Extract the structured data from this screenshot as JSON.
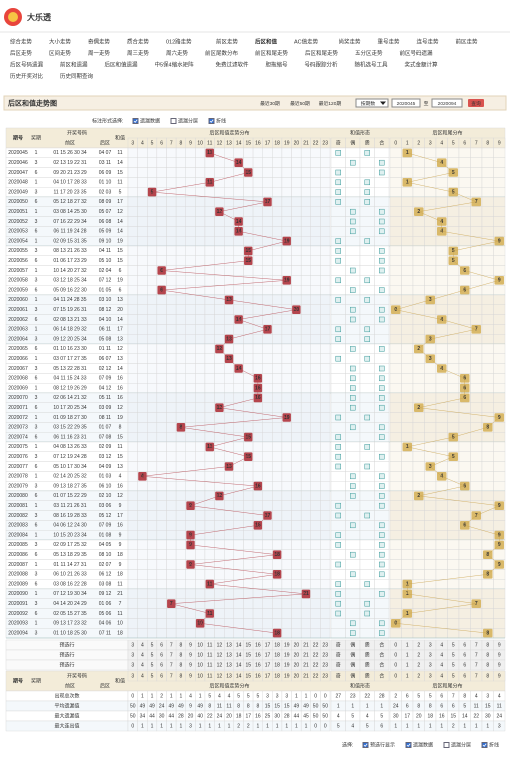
{
  "header": {
    "logo_text": "大乐透"
  },
  "nav": {
    "rows": [
      [
        "综合走势",
        "大小走势",
        "奇偶走势",
        "质合走势",
        "012路走势",
        "前区走势",
        "后区和值",
        "AC值走势",
        "尚奖走势",
        "重号走势",
        "连号走势",
        "前区走势"
      ],
      [
        "后区走势",
        "区间走势",
        "周一走势",
        "周三走势",
        "周六走势",
        "前区尾数分布",
        "前区和尾走势",
        "后区和尾走势",
        "五分区走势",
        "前区号码遗漏"
      ],
      [
        "后区号码遗漏",
        "前区和遗漏",
        "后区和值遗漏",
        "中5保4缩水矩阵",
        "免费过滤软件",
        "胆拖缩号",
        "号码跟踪分析",
        "随机选号工具",
        "奖式金额计算"
      ],
      [
        "历史开奖对比",
        "历史同期查询"
      ]
    ],
    "active": [
      0,
      6
    ]
  },
  "toolbar": {
    "title": "后区和值走势图",
    "range_links": [
      "最近30期",
      "最近50期",
      "最近120期"
    ],
    "select": "按期数",
    "from": "2020045",
    "to_label": "至",
    "to": "2020094",
    "query": "查询"
  },
  "options": {
    "label": "标注形式选择:",
    "items": [
      {
        "label": "遗漏数据",
        "checked": true
      },
      {
        "label": "遗漏分层",
        "checked": false
      },
      {
        "label": "折线",
        "checked": true
      }
    ]
  },
  "table": {
    "headers": {
      "period": "期号",
      "day": "奖期",
      "draw": "开奖号码",
      "front": "前区",
      "back": "后区",
      "sum": "和值",
      "dist": "后区和值走势分布",
      "form": "和值形态",
      "tail": "后区和尾分布"
    },
    "dist_cols": [
      3,
      4,
      5,
      6,
      7,
      8,
      9,
      10,
      11,
      12,
      13,
      14,
      15,
      16,
      17,
      18,
      19,
      20,
      21,
      22,
      23
    ],
    "form_cols": [
      "奇",
      "偶",
      "质",
      "合"
    ],
    "tail_cols": [
      0,
      1,
      2,
      3,
      4,
      5,
      6,
      7,
      8,
      9
    ],
    "rows": [
      [
        "2020045",
        "1",
        "01 15 26 30 34",
        "04 07",
        11,
        1
      ],
      [
        "2020046",
        "3",
        "02 13 19 22 31",
        "03 11",
        14,
        4
      ],
      [
        "2020047",
        "6",
        "09 20 21 23 29",
        "06 09",
        15,
        5
      ],
      [
        "2020048",
        "1",
        "04 10 17 28 33",
        "01 10",
        11,
        1
      ],
      [
        "2020049",
        "3",
        "11 17 20 23 35",
        "02 03",
        5,
        5
      ],
      [
        "2020050",
        "6",
        "05 12 18 27 32",
        "08 09",
        17,
        7
      ],
      [
        "2020051",
        "1",
        "03 08 14 25 30",
        "05 07",
        12,
        2
      ],
      [
        "2020052",
        "3",
        "07 16 22 29 34",
        "06 08",
        14,
        4
      ],
      [
        "2020053",
        "6",
        "06 11 19 24 28",
        "05 09",
        14,
        4
      ],
      [
        "2020054",
        "1",
        "02 09 15 31 35",
        "09 10",
        19,
        9
      ],
      [
        "2020055",
        "3",
        "08 13 21 26 33",
        "04 11",
        15,
        5
      ],
      [
        "2020056",
        "6",
        "01 06 17 23 29",
        "05 10",
        15,
        5
      ],
      [
        "2020057",
        "1",
        "10 14 20 27 32",
        "02 04",
        6,
        6
      ],
      [
        "2020058",
        "3",
        "03 12 18 25 34",
        "07 12",
        19,
        9
      ],
      [
        "2020059",
        "6",
        "05 09 16 22 30",
        "01 05",
        6,
        6
      ],
      [
        "2020060",
        "1",
        "04 11 24 28 35",
        "03 10",
        13,
        3
      ],
      [
        "2020061",
        "3",
        "07 15 19 26 31",
        "08 12",
        20,
        0
      ],
      [
        "2020062",
        "6",
        "02 08 13 21 33",
        "04 10",
        14,
        4
      ],
      [
        "2020063",
        "1",
        "06 14 18 29 32",
        "06 11",
        17,
        7
      ],
      [
        "2020064",
        "3",
        "09 12 20 25 34",
        "05 08",
        13,
        3
      ],
      [
        "2020065",
        "6",
        "01 10 16 23 30",
        "01 11",
        12,
        2
      ],
      [
        "2020066",
        "1",
        "03 07 17 27 35",
        "06 07",
        13,
        3
      ],
      [
        "2020067",
        "3",
        "05 13 22 28 31",
        "02 12",
        14,
        4
      ],
      [
        "2020068",
        "6",
        "04 11 15 24 33",
        "07 09",
        16,
        6
      ],
      [
        "2020069",
        "1",
        "08 12 19 26 29",
        "04 12",
        16,
        6
      ],
      [
        "2020070",
        "3",
        "02 06 14 21 32",
        "05 11",
        16,
        6
      ],
      [
        "2020071",
        "6",
        "10 17 20 25 34",
        "03 09",
        12,
        2
      ],
      [
        "2020072",
        "1",
        "01 09 18 27 30",
        "08 11",
        19,
        9
      ],
      [
        "2020073",
        "3",
        "03 15 22 29 35",
        "01 07",
        8,
        8
      ],
      [
        "2020074",
        "6",
        "06 11 16 23 31",
        "07 08",
        15,
        5
      ],
      [
        "2020075",
        "1",
        "04 08 13 26 33",
        "02 09",
        11,
        1
      ],
      [
        "2020076",
        "3",
        "07 12 19 24 28",
        "03 12",
        15,
        5
      ],
      [
        "2020077",
        "6",
        "05 10 17 30 34",
        "04 09",
        13,
        3
      ],
      [
        "2020078",
        "1",
        "02 14 20 25 32",
        "01 03",
        4,
        4
      ],
      [
        "2020079",
        "3",
        "09 13 18 27 35",
        "06 10",
        16,
        6
      ],
      [
        "2020080",
        "6",
        "01 07 15 22 29",
        "02 10",
        12,
        2
      ],
      [
        "2020081",
        "1",
        "03 11 21 26 31",
        "03 06",
        9,
        9
      ],
      [
        "2020082",
        "3",
        "08 16 19 28 33",
        "05 12",
        17,
        7
      ],
      [
        "2020083",
        "6",
        "04 06 12 24 30",
        "07 09",
        16,
        6
      ],
      [
        "2020084",
        "1",
        "10 15 20 23 34",
        "01 08",
        9,
        9
      ],
      [
        "2020085",
        "3",
        "02 09 17 25 32",
        "04 05",
        9,
        9
      ],
      [
        "2020086",
        "6",
        "05 13 18 29 35",
        "08 10",
        18,
        8
      ],
      [
        "2020087",
        "1",
        "01 11 14 27 31",
        "02 07",
        9,
        9
      ],
      [
        "2020088",
        "3",
        "06 10 21 26 33",
        "06 12",
        18,
        8
      ],
      [
        "2020089",
        "6",
        "03 08 16 22 28",
        "03 08",
        11,
        1
      ],
      [
        "2020090",
        "1",
        "07 12 19 30 34",
        "09 12",
        21,
        1
      ],
      [
        "2020091",
        "3",
        "04 14 20 24 29",
        "01 06",
        7,
        7
      ],
      [
        "2020092",
        "6",
        "02 05 15 27 35",
        "05 06",
        11,
        1
      ],
      [
        "2020093",
        "1",
        "09 13 17 23 32",
        "04 06",
        10,
        0
      ],
      [
        "2020094",
        "3",
        "01 10 18 25 30",
        "07 11",
        18,
        8
      ]
    ],
    "predict_label": "预选行",
    "predict_count": 3,
    "stats": [
      {
        "label": "出现总次数",
        "values": [
          0,
          1,
          1,
          2,
          1,
          1,
          4,
          1,
          5,
          4,
          4,
          5,
          5,
          5,
          3,
          3,
          3,
          1,
          1,
          0,
          0,
          27,
          23,
          22,
          28,
          2,
          6,
          5,
          5,
          6,
          7,
          8,
          4,
          3,
          4
        ]
      },
      {
        "label": "平均遗漏值",
        "values": [
          50,
          49,
          49,
          24,
          49,
          49,
          9,
          49,
          8,
          11,
          11,
          8,
          8,
          8,
          15,
          15,
          15,
          49,
          49,
          50,
          50,
          1,
          1,
          1,
          1,
          24,
          6,
          8,
          8,
          6,
          6,
          5,
          11,
          15,
          11
        ]
      },
      {
        "label": "最大遗漏值",
        "values": [
          50,
          34,
          44,
          30,
          44,
          28,
          20,
          40,
          22,
          24,
          20,
          18,
          17,
          16,
          25,
          30,
          28,
          44,
          45,
          50,
          50,
          4,
          5,
          4,
          5,
          30,
          17,
          20,
          18,
          16,
          15,
          14,
          22,
          30,
          24
        ]
      },
      {
        "label": "最大连出值",
        "values": [
          0,
          1,
          1,
          1,
          1,
          1,
          3,
          1,
          1,
          1,
          1,
          2,
          2,
          1,
          1,
          1,
          1,
          1,
          1,
          0,
          0,
          5,
          4,
          5,
          6,
          1,
          1,
          1,
          1,
          1,
          2,
          1,
          1,
          1,
          3
        ]
      }
    ]
  },
  "footer": {
    "label": "选择:",
    "items": [
      {
        "label": "预选行显示",
        "checked": true
      },
      {
        "label": "遗漏数据",
        "checked": true
      },
      {
        "label": "遗漏分层",
        "checked": false
      },
      {
        "label": "折线",
        "checked": true
      }
    ]
  }
}
